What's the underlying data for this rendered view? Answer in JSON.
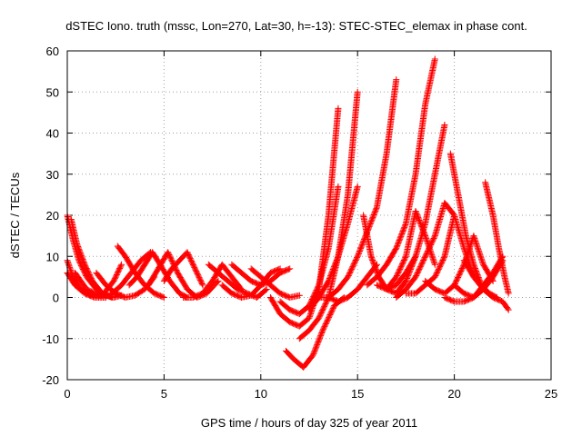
{
  "chart_data": {
    "type": "scatter",
    "title": "dSTEC Iono. truth (mssc, Lon=270, Lat=30, h=-13): STEC-STEC_elemax in phase cont.",
    "xlabel": "GPS time / hours of day 325 of year 2011",
    "ylabel": "dSTEC  / TECUs",
    "xlim": [
      0,
      25
    ],
    "ylim": [
      -20,
      60
    ],
    "xticks": [
      "0",
      "5",
      "10",
      "15",
      "20",
      "25"
    ],
    "yticks": [
      "-20",
      "-10",
      "0",
      "10",
      "20",
      "30",
      "40",
      "50",
      "60"
    ],
    "grid": true,
    "marker": "plus",
    "color": "#ff0000",
    "series": [
      {
        "x": [
          0.0,
          0.3,
          0.6,
          1.0,
          1.5,
          2.0,
          2.4,
          2.8
        ],
        "y": [
          20,
          14,
          9,
          5,
          2,
          0.5,
          0,
          0.5
        ]
      },
      {
        "x": [
          0.2,
          0.5,
          0.9,
          1.3,
          1.8,
          2.3
        ],
        "y": [
          19,
          13,
          8,
          4,
          1,
          0
        ]
      },
      {
        "x": [
          0.0,
          0.3,
          0.7,
          1.2,
          1.8,
          2.4,
          2.8
        ],
        "y": [
          9,
          5,
          2,
          0.5,
          0.5,
          4,
          8
        ]
      },
      {
        "x": [
          0.0,
          0.4,
          0.9,
          1.4,
          2.0
        ],
        "y": [
          6,
          3,
          1,
          0,
          0
        ]
      },
      {
        "x": [
          0.4,
          1.0,
          1.6,
          2.2,
          2.8,
          3.3,
          3.8,
          4.3
        ],
        "y": [
          6,
          2,
          0.5,
          0.5,
          3,
          6,
          9,
          11
        ]
      },
      {
        "x": [
          2.6,
          3.0,
          3.5,
          4.0,
          4.5,
          5.0
        ],
        "y": [
          12.5,
          10,
          6,
          3,
          1,
          0
        ]
      },
      {
        "x": [
          1.5,
          2.0,
          2.5,
          3.0,
          3.5,
          4.0,
          4.5
        ],
        "y": [
          6,
          3,
          1,
          0,
          0.5,
          2,
          5
        ]
      },
      {
        "x": [
          3.2,
          3.6,
          4.0,
          4.4,
          4.8,
          5.3,
          5.8,
          6.2
        ],
        "y": [
          3,
          5,
          8,
          11,
          8,
          4,
          1,
          0
        ]
      },
      {
        "x": [
          4.2,
          4.7,
          5.2,
          5.7,
          6.2,
          6.7,
          7.2,
          7.8
        ],
        "y": [
          3,
          7,
          11,
          6,
          2,
          0,
          1,
          4
        ]
      },
      {
        "x": [
          5.0,
          5.4,
          5.8,
          6.2,
          6.6,
          7.0
        ],
        "y": [
          4,
          7,
          9,
          11,
          7,
          3
        ]
      },
      {
        "x": [
          6.0,
          6.5,
          7.0,
          7.5,
          8.0,
          8.5,
          9.0
        ],
        "y": [
          0,
          0,
          1,
          4,
          8,
          5,
          2
        ]
      },
      {
        "x": [
          7.3,
          7.8,
          8.3,
          8.8,
          9.3,
          9.8,
          10.3
        ],
        "y": [
          8,
          6,
          4,
          2,
          1,
          0,
          2
        ]
      },
      {
        "x": [
          8.0,
          8.5,
          9.0,
          9.5,
          10.0,
          10.5,
          11.0
        ],
        "y": [
          3,
          1,
          0,
          0.5,
          3,
          6,
          7
        ]
      },
      {
        "x": [
          8.5,
          9.0,
          9.5,
          10.0,
          10.5,
          11.0,
          11.5
        ],
        "y": [
          8,
          6,
          4,
          3,
          4,
          6,
          7
        ]
      },
      {
        "x": [
          9.5,
          10.0,
          10.5,
          11.0,
          11.5,
          12.0
        ],
        "y": [
          7,
          5,
          3,
          1,
          0,
          0.5
        ]
      },
      {
        "x": [
          10.5,
          11.0,
          11.5,
          12.0,
          12.5,
          13.0,
          13.5,
          14.0
        ],
        "y": [
          0,
          -4,
          -6,
          -7,
          -5,
          2,
          20,
          46
        ]
      },
      {
        "x": [
          11.0,
          11.5,
          12.0,
          12.5,
          13.0,
          13.5,
          14.0
        ],
        "y": [
          -1,
          -3,
          -4,
          -2,
          3,
          12,
          27
        ]
      },
      {
        "x": [
          11.3,
          11.7,
          12.2,
          12.7,
          13.2,
          13.8,
          14.3
        ],
        "y": [
          -13,
          -15,
          -17,
          -14,
          -8,
          -2,
          0
        ]
      },
      {
        "x": [
          12.0,
          12.5,
          13.0,
          13.5,
          14.0,
          14.5,
          15.0
        ],
        "y": [
          -10,
          -8,
          -5,
          0,
          10,
          25,
          50
        ]
      },
      {
        "x": [
          12.5,
          13.0,
          13.5,
          14.0,
          14.5,
          15.0
        ],
        "y": [
          -3,
          0,
          4,
          10,
          18,
          27
        ]
      },
      {
        "x": [
          13.0,
          13.5,
          14.0,
          14.5,
          15.0,
          15.5,
          16.0,
          16.5,
          17.0
        ],
        "y": [
          0,
          0,
          2,
          5,
          10,
          16,
          22,
          35,
          53
        ]
      },
      {
        "x": [
          13.5,
          14.0,
          14.5,
          15.0,
          15.5,
          16.0
        ],
        "y": [
          0,
          -1,
          0,
          2,
          5,
          8
        ]
      },
      {
        "x": [
          15.3,
          15.7,
          16.1,
          16.5,
          17.0,
          17.5,
          18.0
        ],
        "y": [
          20,
          10,
          5,
          2,
          1,
          4,
          10
        ]
      },
      {
        "x": [
          15.5,
          16.0,
          16.5,
          17.0,
          17.5,
          18.0,
          18.5,
          19.0
        ],
        "y": [
          3,
          5,
          8,
          12,
          18,
          30,
          47,
          58
        ]
      },
      {
        "x": [
          16.0,
          16.5,
          17.0,
          17.5,
          18.0,
          18.5,
          19.0,
          19.5
        ],
        "y": [
          3,
          2,
          3,
          6,
          10,
          18,
          30,
          42
        ]
      },
      {
        "x": [
          16.5,
          17.0,
          17.5,
          18.0,
          18.5,
          19.0
        ],
        "y": [
          2,
          5,
          10,
          21,
          15,
          8
        ]
      },
      {
        "x": [
          17.0,
          17.5,
          18.0,
          18.5,
          19.0,
          19.5,
          20.0
        ],
        "y": [
          0,
          2,
          5,
          10,
          15,
          23,
          20
        ]
      },
      {
        "x": [
          17.5,
          18.0,
          18.5,
          19.0,
          19.5,
          20.0,
          20.5,
          21.0
        ],
        "y": [
          1,
          1,
          3,
          5,
          10,
          20,
          12,
          5
        ]
      },
      {
        "x": [
          19.8,
          20.2,
          20.6,
          21.0,
          21.4,
          21.8,
          22.2
        ],
        "y": [
          35,
          25,
          15,
          8,
          3,
          1,
          0
        ]
      },
      {
        "x": [
          18.5,
          19.0,
          19.5,
          20.0,
          20.5,
          21.0,
          21.5,
          22.0
        ],
        "y": [
          4,
          2,
          1,
          3,
          8,
          15,
          8,
          4
        ]
      },
      {
        "x": [
          20.5,
          21.0,
          21.5,
          22.0,
          22.5,
          22.8
        ],
        "y": [
          9,
          5,
          2,
          0,
          -1,
          -3
        ]
      },
      {
        "x": [
          21.6,
          22.0,
          22.3,
          22.6,
          22.8
        ],
        "y": [
          28,
          20,
          12,
          5,
          1
        ]
      },
      {
        "x": [
          20.0,
          20.5,
          21.0,
          21.5,
          22.0,
          22.5
        ],
        "y": [
          3,
          1,
          0,
          2,
          5,
          9
        ]
      },
      {
        "x": [
          19.5,
          20.0,
          20.5,
          21.0,
          21.5,
          22.0,
          22.5
        ],
        "y": [
          0,
          -1,
          -1,
          0,
          3,
          6,
          10
        ]
      }
    ]
  }
}
